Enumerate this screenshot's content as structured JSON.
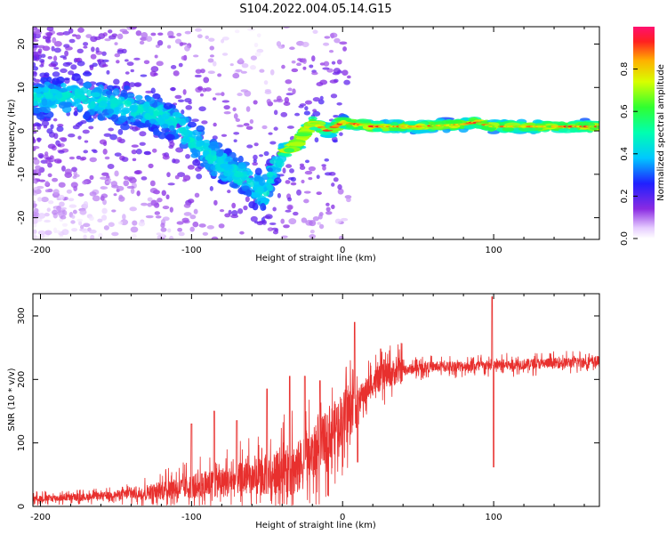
{
  "title": "S104.2022.004.05.14.G15",
  "chart_data": [
    {
      "type": "heatmap",
      "name": "spectrogram",
      "xlabel": "Height of straight line (km)",
      "ylabel": "Frequency (Hz)",
      "xlim": [
        -205,
        170
      ],
      "ylim": [
        -25,
        24
      ],
      "xticks": [
        -200,
        -100,
        0,
        100
      ],
      "yticks": [
        -20,
        -10,
        0,
        10,
        20
      ],
      "colorbar": {
        "label": "Normalized spectral amplitude",
        "range": [
          0.0,
          1.0
        ],
        "ticks": [
          0.0,
          0.2,
          0.4,
          0.6,
          0.8
        ],
        "tick_labels": [
          "0.0",
          "0.2",
          "0.4",
          "0.6",
          "0.8"
        ],
        "colormap": "rainbow (violet→blue→cyan→green→yellow→red)"
      },
      "ridge": {
        "x": [
          -175,
          -150,
          -125,
          -110,
          -100,
          -90,
          -80,
          -70,
          -60,
          -52,
          -45,
          -40,
          -30,
          -20,
          -10,
          0,
          20,
          50,
          80,
          88,
          100,
          130,
          170
        ],
        "y": [
          8,
          6,
          4,
          2,
          -2,
          -5,
          -8,
          -10,
          -12,
          -15,
          -8,
          -5,
          -3,
          2,
          0,
          2,
          1,
          1,
          1.5,
          2,
          1,
          1,
          1
        ]
      },
      "grid": false
    },
    {
      "type": "line",
      "name": "snr",
      "xlabel": "Height of straight line (km)",
      "ylabel": "SNR (10 * v/v)",
      "xlim": [
        -205,
        170
      ],
      "ylim": [
        0,
        335
      ],
      "xticks": [
        -200,
        -100,
        0,
        100
      ],
      "yticks": [
        0,
        100,
        200,
        300
      ],
      "series": [
        {
          "color": "#e8302e",
          "trend": {
            "x": [
              -205,
              -170,
              -140,
              -110,
              -80,
              -50,
              -30,
              -20,
              -10,
              0,
              10,
              20,
              30,
              40,
              60,
              100,
              130,
              170
            ],
            "y": [
              12,
              15,
              20,
              28,
              38,
              48,
              60,
              80,
              110,
              140,
              165,
              195,
              208,
              215,
              220,
              222,
              225,
              228
            ]
          },
          "spikes": [
            {
              "x": -100,
              "y": 130
            },
            {
              "x": -85,
              "y": 150
            },
            {
              "x": -70,
              "y": 135
            },
            {
              "x": -50,
              "y": 185
            },
            {
              "x": -35,
              "y": 205
            },
            {
              "x": -25,
              "y": 205
            },
            {
              "x": -15,
              "y": 198
            },
            {
              "x": 8,
              "y": 290
            },
            {
              "x": 10,
              "y": 70
            },
            {
              "x": 99,
              "y": 330
            },
            {
              "x": 100,
              "y": 62
            }
          ]
        }
      ],
      "grid": false
    }
  ]
}
